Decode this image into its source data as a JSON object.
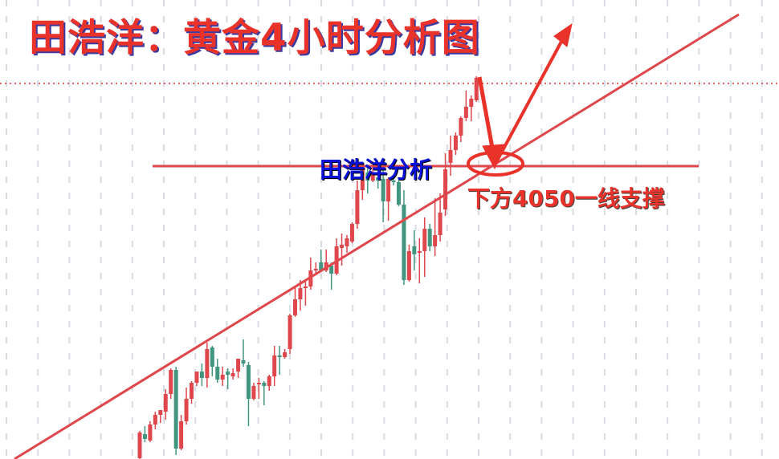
{
  "title": "田浩洋：黄金4小时分析图",
  "watermark": "田浩洋分析",
  "annotation": "下方4050一线支撑",
  "colors": {
    "up": "#e0474c",
    "down": "#42967f",
    "drawing": "#e8322a",
    "grid": "#d8dbe3",
    "watermark": "#0a12d8"
  },
  "chart_data": {
    "type": "candlestick",
    "timeframe": "4小时",
    "grid": "vertical dashed",
    "support_level": 4050,
    "resistance_level_dotted": 4102,
    "candles": [
      [
        3868,
        3885,
        3867,
        3884
      ],
      [
        3883,
        3888,
        3878,
        3880
      ],
      [
        3879,
        3891,
        3878,
        3889
      ],
      [
        3889,
        3897,
        3886,
        3895
      ],
      [
        3895,
        3898,
        3890,
        3898
      ],
      [
        3897,
        3911,
        3892,
        3908
      ],
      [
        3908,
        3924,
        3905,
        3923
      ],
      [
        3923,
        3925,
        3870,
        3874
      ],
      [
        3874,
        3895,
        3873,
        3891
      ],
      [
        3891,
        3912,
        3889,
        3905
      ],
      [
        3905,
        3916,
        3902,
        3915
      ],
      [
        3915,
        3922,
        3913,
        3922
      ],
      [
        3922,
        3927,
        3913,
        3918
      ],
      [
        3918,
        3940,
        3912,
        3936
      ],
      [
        3937,
        3938,
        3919,
        3925
      ],
      [
        3925,
        3930,
        3915,
        3917
      ],
      [
        3917,
        3925,
        3913,
        3920
      ],
      [
        3922,
        3924,
        3911,
        3920
      ],
      [
        3919,
        3924,
        3917,
        3921
      ],
      [
        3922,
        3930,
        3918,
        3930
      ],
      [
        3929,
        3942,
        3925,
        3927
      ],
      [
        3926,
        3928,
        3888,
        3905
      ],
      [
        3905,
        3915,
        3904,
        3913
      ],
      [
        3914,
        3918,
        3905,
        3915
      ],
      [
        3915,
        3916,
        3901,
        3913
      ],
      [
        3913,
        3920,
        3910,
        3919
      ],
      [
        3919,
        3938,
        3913,
        3932
      ],
      [
        3932,
        3938,
        3920,
        3931
      ],
      [
        3931,
        3936,
        3930,
        3934
      ],
      [
        3936,
        3958,
        3933,
        3957
      ],
      [
        3957,
        3975,
        3956,
        3967
      ],
      [
        3967,
        3979,
        3960,
        3974
      ],
      [
        3974,
        3979,
        3963,
        3975
      ],
      [
        3975,
        3993,
        3973,
        3985
      ],
      [
        3985,
        3990,
        3983,
        3986
      ],
      [
        3990,
        3998,
        3984,
        3985
      ],
      [
        3985,
        3998,
        3984,
        3990
      ],
      [
        3988,
        3990,
        3973,
        3983
      ],
      [
        3983,
        4005,
        3982,
        4000
      ],
      [
        3999,
        4008,
        3988,
        4001
      ],
      [
        4000,
        4007,
        3996,
        4005
      ],
      [
        4003,
        4015,
        4002,
        4014
      ],
      [
        4014,
        4041,
        4011,
        4035
      ],
      [
        4035,
        4051,
        4029,
        4048
      ],
      [
        4046,
        4051,
        4033,
        4041
      ],
      [
        4041,
        4053,
        4040,
        4046
      ],
      [
        4043,
        4048,
        4036,
        4041
      ],
      [
        4042,
        4048,
        4015,
        4028
      ],
      [
        4028,
        4043,
        4016,
        4042
      ],
      [
        4041,
        4044,
        4038,
        4040
      ],
      [
        4040,
        4043,
        4025,
        4026
      ],
      [
        4026,
        4035,
        3976,
        3979
      ],
      [
        3979,
        4001,
        3978,
        3997
      ],
      [
        4000,
        4010,
        3985,
        3995
      ],
      [
        3996,
        4005,
        3977,
        3997
      ],
      [
        3997,
        4018,
        3981,
        4011
      ],
      [
        4011,
        4014,
        3997,
        4000
      ],
      [
        4000,
        4030,
        3994,
        4007
      ],
      [
        4007,
        4033,
        4003,
        4021
      ],
      [
        4023,
        4058,
        4019,
        4048
      ],
      [
        4052,
        4069,
        4044,
        4060
      ],
      [
        4060,
        4071,
        4057,
        4069
      ],
      [
        4069,
        4081,
        4065,
        4080
      ],
      [
        4080,
        4097,
        4078,
        4087
      ],
      [
        4087,
        4094,
        4078,
        4092
      ],
      [
        4091,
        4106,
        4090,
        4105
      ]
    ],
    "candle_format": [
      "open",
      "high",
      "low",
      "close"
    ]
  }
}
